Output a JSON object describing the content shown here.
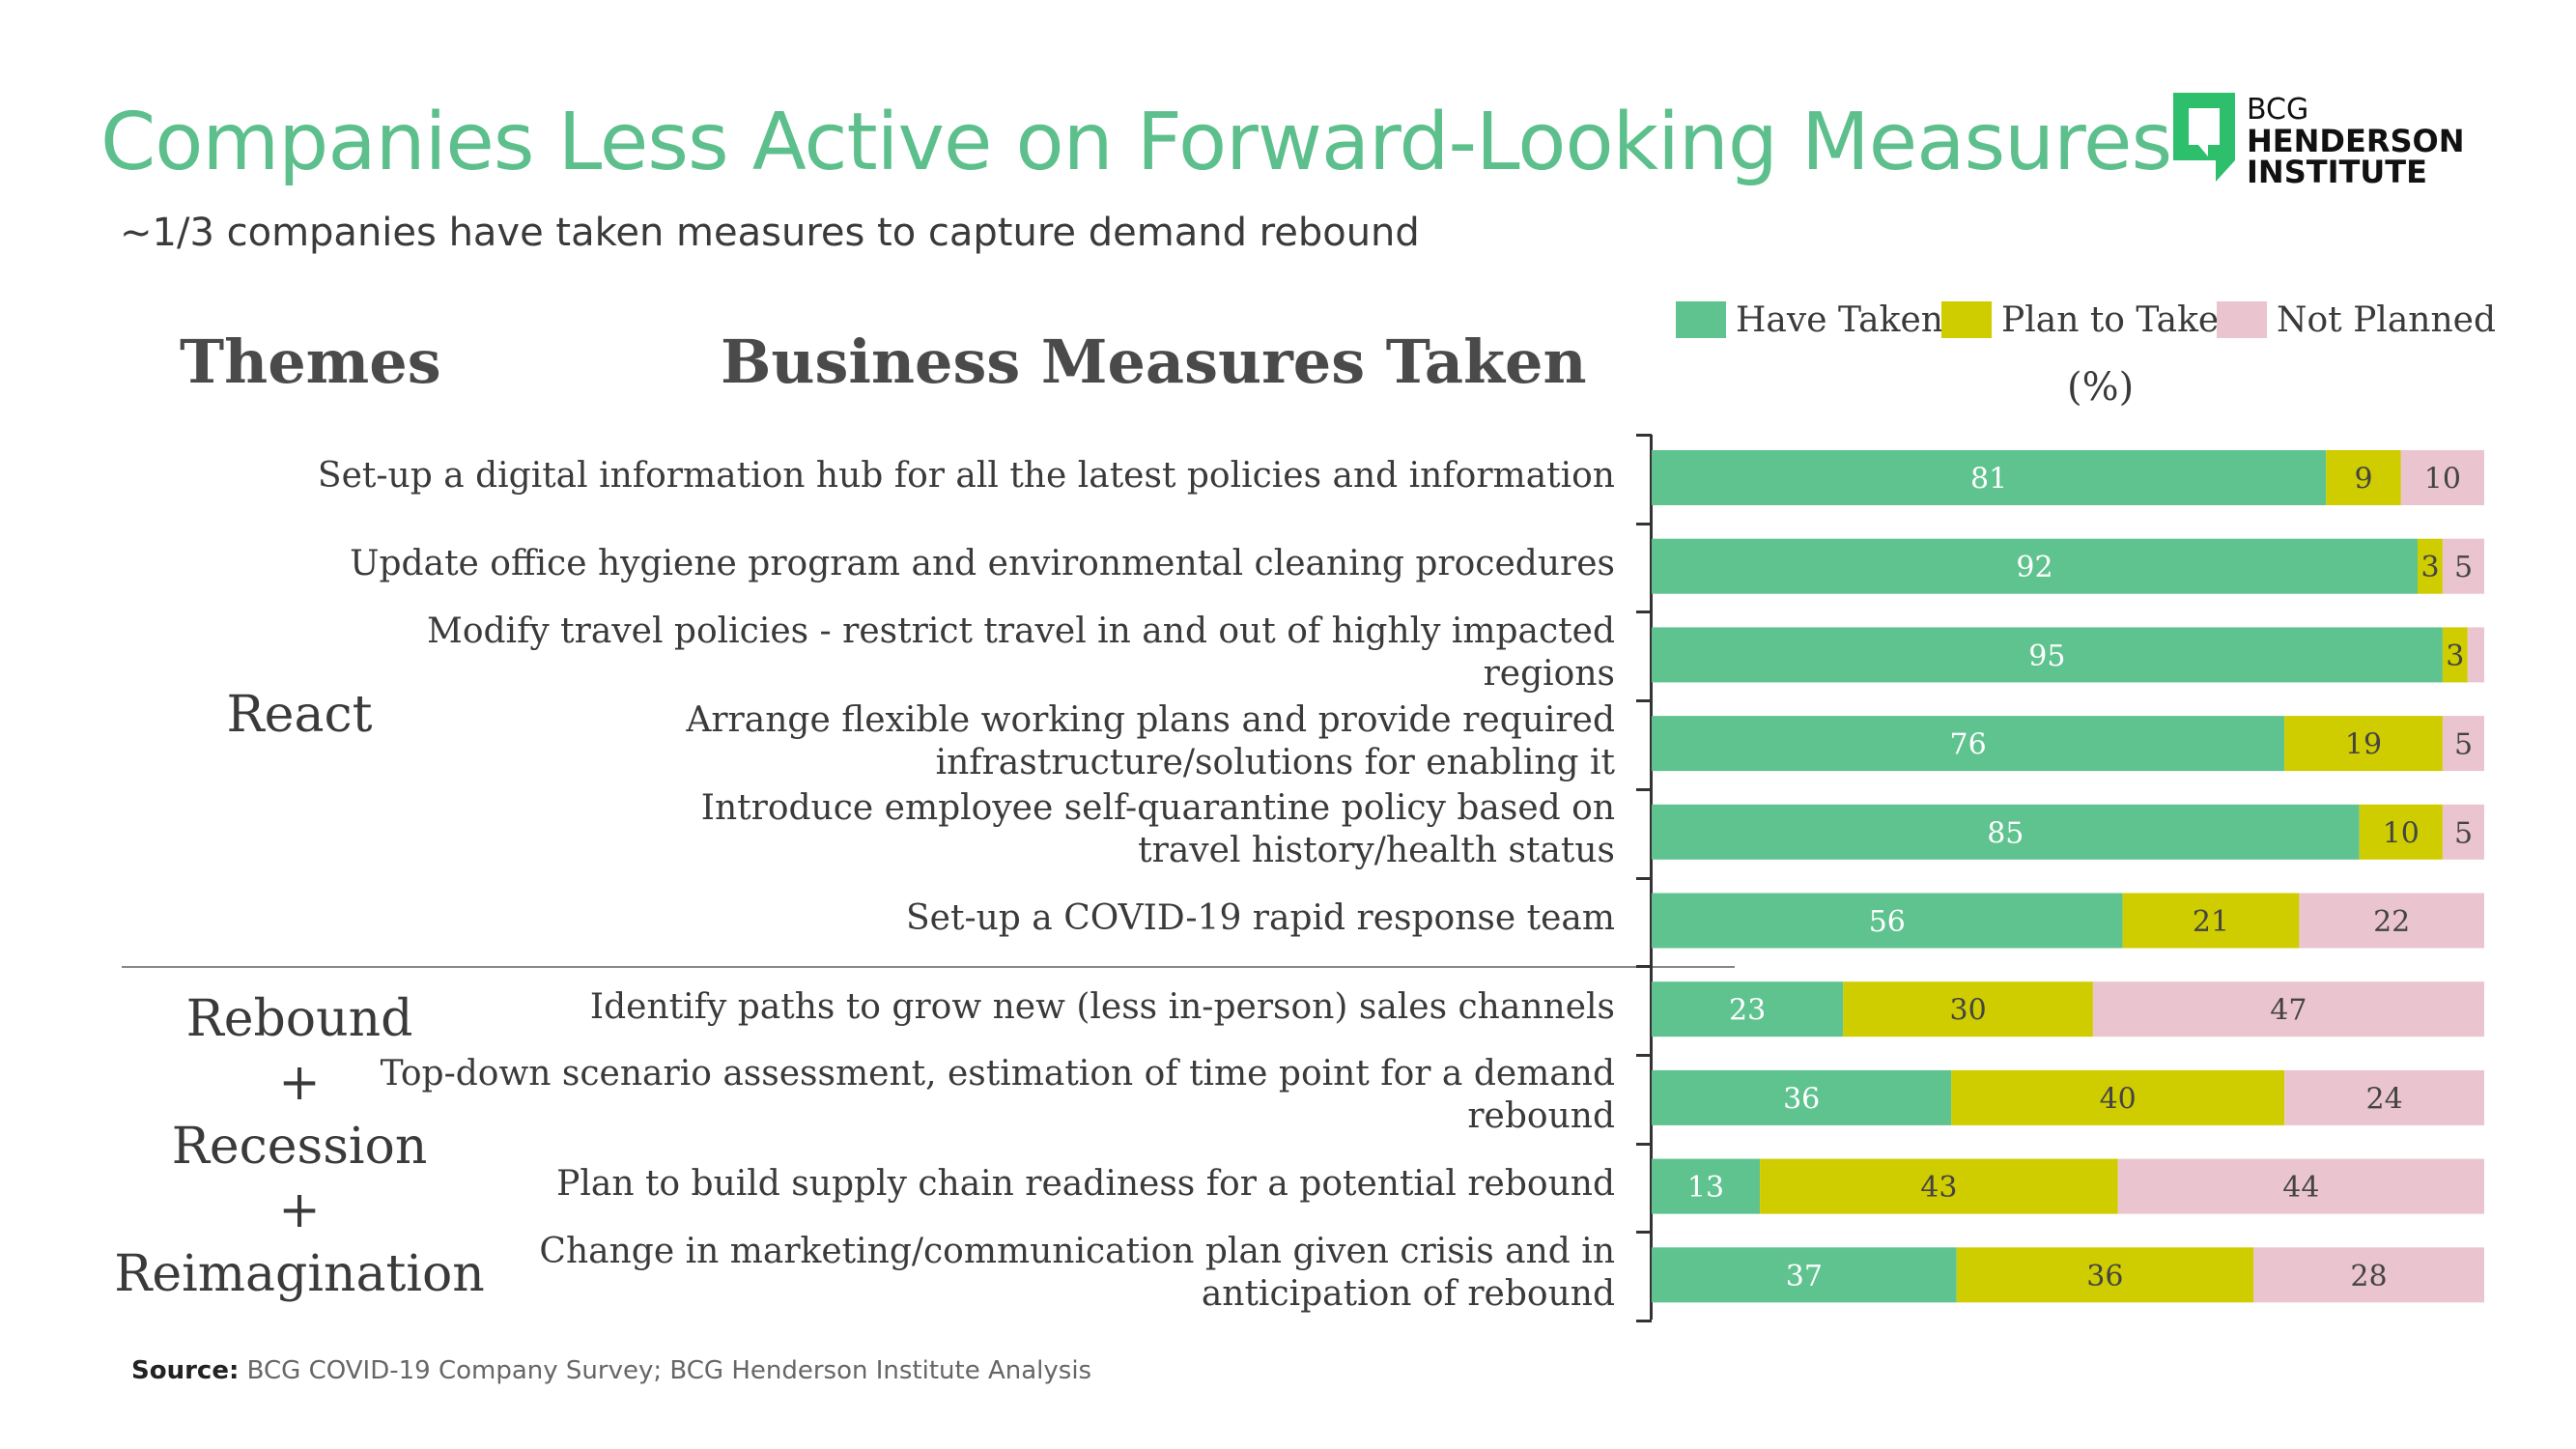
{
  "title": "Companies Less Active on Forward-Looking Measures",
  "subtitle": "~1/3 companies have taken measures to capture demand rebound",
  "logo": {
    "line1": "BCG",
    "line2": "HENDERSON",
    "line3": "INSTITUTE"
  },
  "headers": {
    "themes": "Themes",
    "measures": "Business Measures Taken"
  },
  "unit": "(%)",
  "themes": [
    {
      "label": "React"
    },
    {
      "lines": [
        "Rebound",
        "+",
        "Recession",
        "+",
        "Reimagination"
      ]
    }
  ],
  "source": {
    "label": "Source:",
    "text": " BCG COVID-19 Company Survey; BCG Henderson Institute Analysis"
  },
  "colors": {
    "have_taken": "#5fc38f",
    "plan_to_take": "#cfcc00",
    "not_planned": "#eac5d0",
    "title": "#5cbf8c"
  },
  "chart_data": {
    "type": "bar",
    "orientation": "horizontal",
    "stacked": true,
    "xlim": [
      0,
      100
    ],
    "legend_position": "top-right",
    "categories": [
      [
        "Set-up a digital information hub for all the latest policies and information"
      ],
      [
        "Update office hygiene program and environmental cleaning procedures"
      ],
      [
        "Modify travel policies - restrict travel in and out of highly impacted",
        "regions"
      ],
      [
        "Arrange flexible working plans and provide required",
        "infrastructure/solutions for enabling it"
      ],
      [
        "Introduce employee self-quarantine policy based on",
        "travel history/health status"
      ],
      [
        "Set-up a COVID-19 rapid response team"
      ],
      [
        "Identify paths to grow new (less in-person) sales channels"
      ],
      [
        "Top-down scenario assessment, estimation of time point for a demand",
        "rebound"
      ],
      [
        "Plan to build supply chain readiness for a potential rebound"
      ],
      [
        "Change in marketing/communication plan given crisis and in",
        "anticipation of rebound"
      ]
    ],
    "series": [
      {
        "name": "Have Taken",
        "values": [
          81,
          92,
          95,
          76,
          85,
          56,
          23,
          36,
          13,
          37
        ]
      },
      {
        "name": "Plan to Take",
        "values": [
          9,
          3,
          3,
          19,
          10,
          21,
          30,
          40,
          43,
          36
        ]
      },
      {
        "name": "Not Planned",
        "values": [
          10,
          5,
          2,
          5,
          5,
          22,
          47,
          24,
          44,
          28
        ]
      }
    ],
    "labels": [
      [
        "81",
        "9",
        "10"
      ],
      [
        "92",
        "3",
        "5"
      ],
      [
        "95",
        "3",
        ""
      ],
      [
        "76",
        "19",
        "5"
      ],
      [
        "85",
        "10",
        "5"
      ],
      [
        "56",
        "21",
        "22"
      ],
      [
        "23",
        "30",
        "47"
      ],
      [
        "36",
        "40",
        "24"
      ],
      [
        "13",
        "43",
        "44"
      ],
      [
        "37",
        "36",
        "28"
      ]
    ]
  }
}
